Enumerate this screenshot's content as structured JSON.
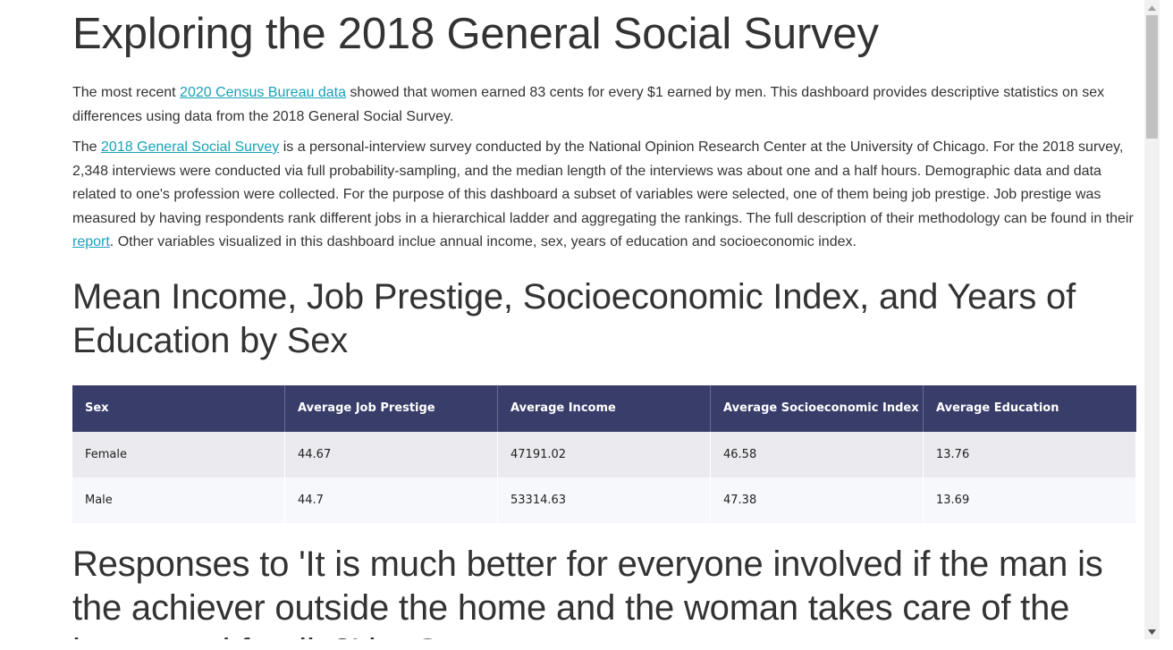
{
  "page": {
    "title": "Exploring the 2018 General Social Survey",
    "intro1": {
      "pre": "The most recent ",
      "link": "2020 Census Bureau data",
      "post": " showed that women earned 83 cents for every $1 earned by men. This dashboard provides descriptive statistics on sex differences using data from the 2018 General Social Survey."
    },
    "intro2": {
      "pre": "The ",
      "link1": "2018 General Social Survey",
      "mid": " is a personal-interview survey conducted by the National Opinion Research Center at the University of Chicago. For the 2018 survey, 2,348 interviews were conducted via full probability-sampling, and the median length of the interviews was about one and a half hours. Demographic data and data related to one's profession were collected. For the purpose of this dashboard a subset of variables were selected, one of them being job prestige. Job prestige was measured by having respondents rank different jobs in a hierarchical ladder and aggregating the rankings. The full description of their methodology can be found in their ",
      "link2": "report",
      "post": ". Other variables visualized in this dashboard inclue annual income, sex, years of education and socioeconomic index."
    },
    "section1_title": "Mean Income, Job Prestige, Socioeconomic Index, and Years of Education by Sex",
    "table": {
      "headers": [
        "Sex",
        "Average Job Prestige",
        "Average Income",
        "Average Socioeconomic Index",
        "Average Education"
      ],
      "rows": [
        [
          "Female",
          "44.67",
          "47191.02",
          "46.58",
          "13.76"
        ],
        [
          "Male",
          "44.7",
          "53314.63",
          "47.38",
          "13.69"
        ]
      ]
    },
    "section2_title": "Responses to 'It is much better for everyone involved if the man is the achiever outside the home and the woman takes care of the home and family?' by Sex"
  },
  "colors": {
    "link": "#17a2b8",
    "table_header": "#393d6a",
    "row_odd": "#ebebef",
    "row_even": "#f7f8fb"
  }
}
